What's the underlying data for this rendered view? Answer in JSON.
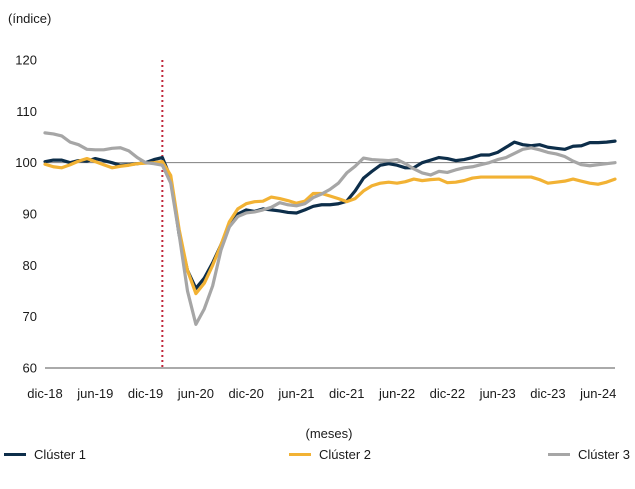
{
  "chart_data": {
    "type": "line",
    "title": "",
    "ylabel": "(índice)",
    "xlabel": "(meses)",
    "ylim": [
      60,
      120
    ],
    "yticks": [
      60,
      70,
      80,
      90,
      100,
      110,
      120
    ],
    "xlim": [
      "2018-12",
      "2024-08"
    ],
    "xtick_labels": [
      "dic-18",
      "jun-19",
      "dic-19",
      "jun-20",
      "dic-20",
      "jun-21",
      "dic-21",
      "jun-22",
      "dic-22",
      "jun-23",
      "dic-23",
      "jun-24"
    ],
    "xtick_dates": [
      "2018-12",
      "2019-06",
      "2019-12",
      "2020-06",
      "2020-12",
      "2021-06",
      "2021-12",
      "2022-06",
      "2022-12",
      "2023-06",
      "2023-12",
      "2024-06"
    ],
    "reference_line": 100,
    "vertical_marker": "2020-02",
    "legend_position": "bottom",
    "colors": {
      "Clúster 1": "#0d2e4a",
      "Clúster 2": "#f2b234",
      "Clúster 3": "#a6a6a6",
      "reference": "#7f7f7f",
      "marker": "#c0263a"
    },
    "x": [
      "2018-12",
      "2019-01",
      "2019-02",
      "2019-03",
      "2019-04",
      "2019-05",
      "2019-06",
      "2019-07",
      "2019-08",
      "2019-09",
      "2019-10",
      "2019-11",
      "2019-12",
      "2020-01",
      "2020-02",
      "2020-03",
      "2020-04",
      "2020-05",
      "2020-06",
      "2020-07",
      "2020-08",
      "2020-09",
      "2020-10",
      "2020-11",
      "2020-12",
      "2021-01",
      "2021-02",
      "2021-03",
      "2021-04",
      "2021-05",
      "2021-06",
      "2021-07",
      "2021-08",
      "2021-09",
      "2021-10",
      "2021-11",
      "2021-12",
      "2022-01",
      "2022-02",
      "2022-03",
      "2022-04",
      "2022-05",
      "2022-06",
      "2022-07",
      "2022-08",
      "2022-09",
      "2022-10",
      "2022-11",
      "2022-12",
      "2023-01",
      "2023-02",
      "2023-03",
      "2023-04",
      "2023-05",
      "2023-06",
      "2023-07",
      "2023-08",
      "2023-09",
      "2023-10",
      "2023-11",
      "2023-12",
      "2024-01",
      "2024-02",
      "2024-03",
      "2024-04",
      "2024-05",
      "2024-06",
      "2024-07",
      "2024-08"
    ],
    "series": [
      {
        "name": "Clúster 1",
        "values": [
          100.2,
          100.5,
          100.5,
          100.0,
          100.4,
          100.3,
          100.8,
          100.4,
          100.0,
          99.5,
          99.6,
          99.8,
          100.0,
          100.6,
          101.0,
          97.0,
          86.0,
          79.0,
          75.5,
          77.5,
          80.5,
          84.0,
          88.0,
          90.0,
          90.8,
          90.5,
          91.0,
          90.8,
          90.6,
          90.3,
          90.2,
          90.8,
          91.5,
          91.8,
          91.8,
          92.0,
          92.5,
          94.5,
          97.0,
          98.3,
          99.5,
          99.8,
          99.5,
          99.0,
          99.0,
          100.0,
          100.5,
          101.0,
          100.8,
          100.4,
          100.6,
          101.0,
          101.5,
          101.5,
          102.0,
          103.0,
          104.0,
          103.5,
          103.3,
          103.5,
          103.0,
          102.8,
          102.6,
          103.2,
          103.3,
          103.9,
          103.9,
          104.0,
          104.2
        ]
      },
      {
        "name": "Clúster 2",
        "values": [
          99.7,
          99.2,
          99.0,
          99.6,
          100.3,
          100.8,
          100.2,
          99.6,
          99.0,
          99.3,
          99.5,
          99.8,
          99.9,
          100.0,
          100.2,
          97.5,
          87.0,
          79.0,
          74.5,
          76.5,
          80.0,
          84.0,
          88.5,
          91.0,
          92.0,
          92.4,
          92.5,
          93.3,
          93.0,
          92.6,
          92.1,
          92.5,
          94.0,
          94.0,
          93.5,
          93.0,
          92.4,
          93.0,
          94.5,
          95.5,
          96.0,
          96.2,
          96.0,
          96.3,
          96.8,
          96.5,
          96.7,
          96.8,
          96.1,
          96.2,
          96.5,
          97.0,
          97.2,
          97.2,
          97.2,
          97.2,
          97.2,
          97.2,
          97.2,
          96.7,
          96.0,
          96.2,
          96.4,
          96.8,
          96.4,
          96.0,
          95.8,
          96.2,
          96.8
        ]
      },
      {
        "name": "Clúster 3",
        "values": [
          105.8,
          105.6,
          105.2,
          104.0,
          103.5,
          102.6,
          102.5,
          102.5,
          102.8,
          102.9,
          102.3,
          101.0,
          100.0,
          99.8,
          99.5,
          96.0,
          86.0,
          75.0,
          68.5,
          71.5,
          76.0,
          83.0,
          87.5,
          89.5,
          90.2,
          90.4,
          90.8,
          91.3,
          92.2,
          91.8,
          91.6,
          92.0,
          93.2,
          93.9,
          94.8,
          96.0,
          98.0,
          99.3,
          100.9,
          100.6,
          100.5,
          100.4,
          100.6,
          99.8,
          98.8,
          98.0,
          97.6,
          98.3,
          98.1,
          98.6,
          99.0,
          99.2,
          99.6,
          100.0,
          100.6,
          101.0,
          101.8,
          102.6,
          102.9,
          102.5,
          102.0,
          101.7,
          101.2,
          100.3,
          99.6,
          99.4,
          99.6,
          99.8,
          100.0
        ]
      }
    ]
  }
}
